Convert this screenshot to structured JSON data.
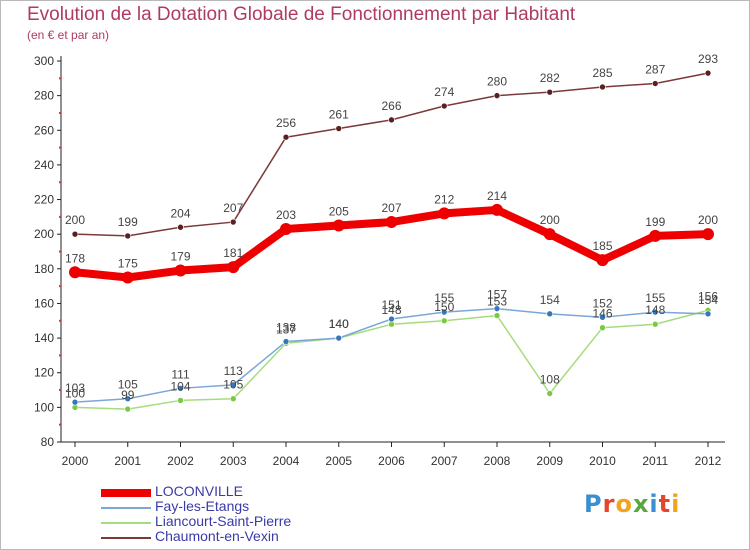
{
  "header": {
    "title": "Evolution de la Dotation Globale de Fonctionnement par Habitant",
    "subtitle": "(en € et par an)"
  },
  "logo": {
    "text": "Proxiti",
    "letters": [
      {
        "ch": "P",
        "color": "#3a8fd1"
      },
      {
        "ch": "r",
        "color": "#e4462c"
      },
      {
        "ch": "o",
        "color": "#f2a51a"
      },
      {
        "ch": "x",
        "color": "#57a83e"
      },
      {
        "ch": "i",
        "color": "#3a8fd1"
      },
      {
        "ch": "t",
        "color": "#e4462c"
      },
      {
        "ch": "i",
        "color": "#f2a51a"
      }
    ]
  },
  "chart_data": {
    "type": "line",
    "x": [
      "2000",
      "2001",
      "2002",
      "2003",
      "2004",
      "2005",
      "2006",
      "2007",
      "2008",
      "2009",
      "2010",
      "2011",
      "2012"
    ],
    "ylim": [
      80,
      300
    ],
    "yticks": [
      80,
      100,
      120,
      140,
      160,
      180,
      200,
      220,
      240,
      260,
      280,
      300
    ],
    "grid": false,
    "legend_position": "bottom-left",
    "series": [
      {
        "name": "LOCONVILLE",
        "color": "#ee0000",
        "marker": "#ee0000",
        "width": 8,
        "values": [
          178,
          175,
          179,
          181,
          203,
          205,
          207,
          212,
          214,
          200,
          185,
          199,
          200
        ],
        "labeled": true
      },
      {
        "name": "Fay-les-Etangs",
        "color": "#7aa6d8",
        "marker": "#3577b8",
        "width": 1.5,
        "values": [
          103,
          105,
          111,
          113,
          138,
          140,
          151,
          155,
          157,
          154,
          152,
          155,
          154
        ],
        "labeled": true
      },
      {
        "name": "Liancourt-Saint-Pierre",
        "color": "#a5dc7c",
        "marker": "#7ac943",
        "width": 1.5,
        "values": [
          100,
          99,
          104,
          105,
          137,
          140,
          148,
          150,
          153,
          108,
          146,
          148,
          156
        ],
        "labeled": true
      },
      {
        "name": "Chaumont-en-Vexin",
        "color": "#7a3a3a",
        "marker": "#5a1f1f",
        "width": 1.5,
        "values": [
          200,
          199,
          204,
          207,
          256,
          261,
          266,
          274,
          280,
          282,
          285,
          287,
          293
        ],
        "labeled": true
      }
    ]
  }
}
